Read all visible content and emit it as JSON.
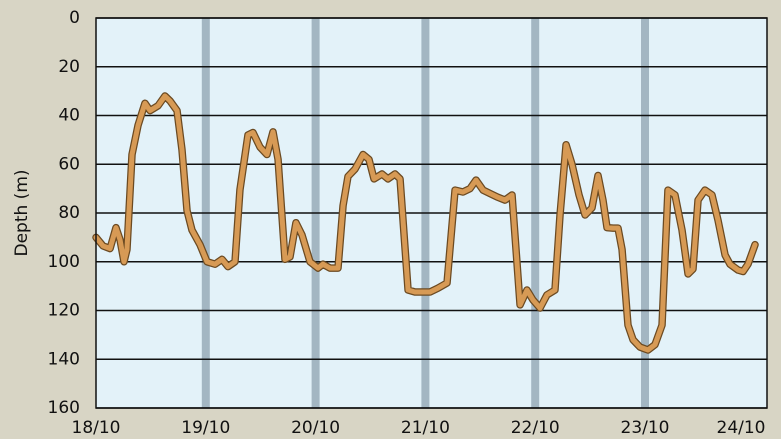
{
  "chart_data": {
    "type": "line",
    "y_label": "Depth  (m)",
    "x": [
      0,
      0.064,
      0.128,
      0.182,
      0.219,
      0.255,
      0.282,
      0.328,
      0.383,
      0.446,
      0.492,
      0.565,
      0.628,
      0.674,
      0.738,
      0.783,
      0.829,
      0.874,
      0.947,
      1.011,
      1.084,
      1.148,
      1.202,
      1.266,
      1.311,
      1.384,
      1.43,
      1.494,
      1.557,
      1.612,
      1.658,
      1.721,
      1.767,
      1.821,
      1.876,
      1.949,
      2.022,
      2.067,
      2.131,
      2.204,
      2.25,
      2.295,
      2.359,
      2.432,
      2.486,
      2.532,
      2.605,
      2.659,
      2.723,
      2.769,
      2.842,
      2.905,
      2.969,
      3.042,
      3.115,
      3.197,
      3.27,
      3.342,
      3.406,
      3.461,
      3.525,
      3.588,
      3.652,
      3.725,
      3.789,
      3.862,
      3.925,
      3.98,
      4.044,
      4.107,
      4.18,
      4.226,
      4.281,
      4.335,
      4.399,
      4.454,
      4.517,
      4.572,
      4.617,
      4.654,
      4.709,
      4.754,
      4.791,
      4.845,
      4.891,
      4.954,
      5.027,
      5.091,
      5.155,
      5.209,
      5.273,
      5.337,
      5.392,
      5.437,
      5.483,
      5.546,
      5.61,
      5.665,
      5.729,
      5.774,
      5.847,
      5.893,
      5.938,
      6.002
    ],
    "series": [
      {
        "color": "#d79a55",
        "values": [
          90,
          93.5,
          94.6,
          86,
          91,
          100,
          95,
          56,
          44,
          35,
          38,
          36,
          32,
          34,
          38,
          54,
          79,
          87,
          93,
          100,
          101,
          99,
          102,
          100,
          70.5,
          48,
          47,
          53,
          56,
          46.7,
          58,
          99,
          98,
          84,
          89,
          100,
          102.6,
          101,
          102.6,
          102.6,
          77,
          65,
          62,
          56,
          58,
          66,
          64,
          66,
          64,
          66,
          111.6,
          112.4,
          112.4,
          112.4,
          110.8,
          108.7,
          70.6,
          71.4,
          70,
          66.5,
          70.6,
          72,
          73.4,
          74.7,
          72.6,
          117.7,
          111.6,
          115.7,
          119,
          113.6,
          111.6,
          80.8,
          52,
          60,
          72.6,
          80.8,
          77.9,
          64.6,
          74.7,
          86,
          86.2,
          86.2,
          95,
          126,
          132,
          135,
          136.2,
          134,
          126,
          70.6,
          72.6,
          87,
          105,
          103,
          74.7,
          70.6,
          72.6,
          83,
          97.2,
          101,
          103.4,
          104,
          101,
          93
        ]
      }
    ],
    "xlim": [
      0,
      6.111
    ],
    "xticks": [
      {
        "value": 0,
        "label": "18/10"
      },
      {
        "value": 1,
        "label": "19/10"
      },
      {
        "value": 2,
        "label": "20/10"
      },
      {
        "value": 3,
        "label": "21/10"
      },
      {
        "value": 4,
        "label": "22/10"
      },
      {
        "value": 5,
        "label": "23/10"
      },
      {
        "value": 6,
        "label": "24/10"
      }
    ],
    "ylim": [
      0,
      160
    ],
    "y_inverted": true,
    "yticks": [
      0,
      20,
      40,
      60,
      80,
      100,
      120,
      140,
      160
    ],
    "grid": true
  }
}
